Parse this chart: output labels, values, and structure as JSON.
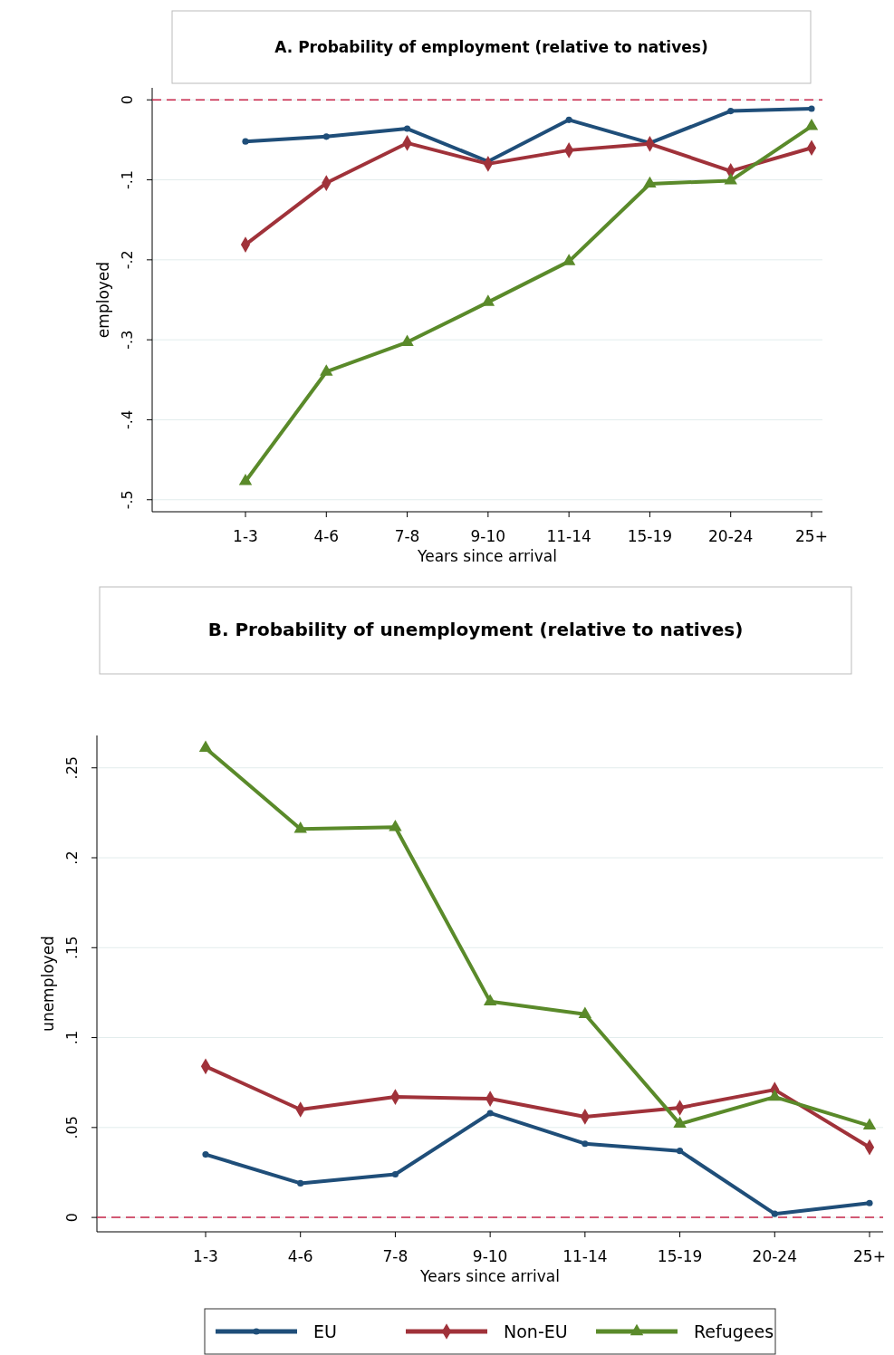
{
  "chart_data": [
    {
      "type": "line",
      "title": "A. Probability of  employment (relative to natives)",
      "xlabel": "Years since arrival",
      "ylabel": "employed",
      "categories": [
        "1-3",
        "4-6",
        "7-8",
        "9-10",
        "11-14",
        "15-19",
        "20-24",
        "25+"
      ],
      "series": [
        {
          "color": "#1f4e79",
          "marker": "circle",
          "values": [
            -0.052,
            -0.046,
            -0.036,
            -0.077,
            -0.025,
            -0.054,
            -0.014,
            -0.011
          ]
        },
        {
          "color": "#a0323a",
          "marker": "diamond",
          "values": [
            -0.181,
            -0.104,
            -0.054,
            -0.08,
            -0.063,
            -0.055,
            -0.089,
            -0.06
          ]
        },
        {
          "color": "#5a8a2a",
          "marker": "triangle",
          "values": [
            -0.477,
            -0.34,
            -0.303,
            -0.253,
            -0.202,
            -0.105,
            -0.101,
            -0.033
          ]
        }
      ],
      "ylim": [
        -0.515,
        0.015
      ],
      "yticks": [
        0,
        {
          "value": -0.1,
          "label": "-.1"
        },
        {
          "value": -0.2,
          "label": "-.2"
        },
        {
          "value": -0.3,
          "label": "-.3"
        },
        {
          "value": -0.4,
          "label": "-.4"
        },
        {
          "value": -0.5,
          "label": "-.5"
        }
      ],
      "grid": "y",
      "ref_lines": [
        {
          "axis": "y",
          "value": 0,
          "color": "#c8264a",
          "line_style": "dashed"
        }
      ]
    },
    {
      "type": "line",
      "title": "B. Probability of  unemployment (relative to natives)",
      "xlabel": "Years since arrival",
      "ylabel": "unemployed",
      "categories": [
        "1-3",
        "4-6",
        "7-8",
        "9-10",
        "11-14",
        "15-19",
        "20-24",
        "25+"
      ],
      "series": [
        {
          "name": "EU",
          "color": "#1f4e79",
          "marker": "circle",
          "values": [
            0.035,
            0.019,
            0.024,
            0.058,
            0.041,
            0.037,
            0.002,
            0.008
          ]
        },
        {
          "name": "Non-EU",
          "color": "#a0323a",
          "marker": "diamond",
          "values": [
            0.084,
            0.06,
            0.067,
            0.066,
            0.056,
            0.061,
            0.071,
            0.039
          ]
        },
        {
          "name": "Refugees",
          "color": "#5a8a2a",
          "marker": "triangle",
          "values": [
            0.261,
            0.216,
            0.217,
            0.12,
            0.113,
            0.052,
            0.067,
            0.051
          ]
        }
      ],
      "ylim": [
        -0.008,
        0.268
      ],
      "yticks": [
        0,
        {
          "value": 0.05,
          "label": ".05"
        },
        {
          "value": 0.1,
          "label": ".1"
        },
        {
          "value": 0.15,
          "label": ".15"
        },
        {
          "value": 0.2,
          "label": ".2"
        },
        {
          "value": 0.25,
          "label": ".25"
        }
      ],
      "grid": "y",
      "legend": "bottom",
      "ref_lines": [
        {
          "axis": "y",
          "value": 0,
          "color": "#c8264a",
          "line_style": "dashed"
        }
      ]
    }
  ]
}
